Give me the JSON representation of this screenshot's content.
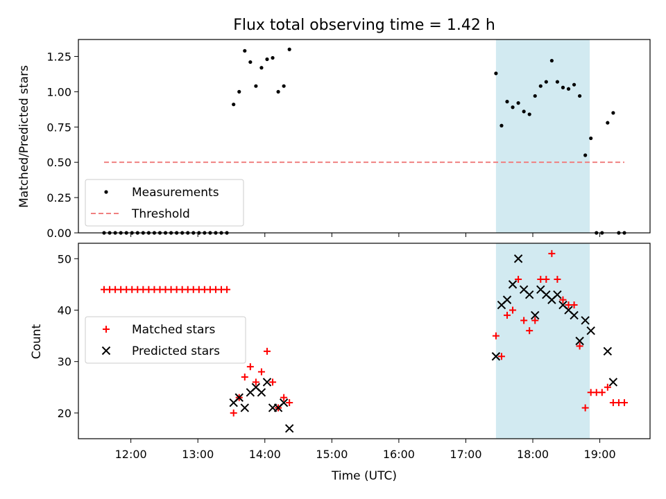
{
  "title": "Flux total observing time = 1.42 h",
  "xlabel": "Time (UTC)",
  "x_ticks": [
    "12:00",
    "13:00",
    "14:00",
    "15:00",
    "16:00",
    "17:00",
    "18:00",
    "19:00"
  ],
  "chart_data": [
    {
      "type": "scatter",
      "title": "Flux total observing time = 1.42 h",
      "xlabel": "",
      "ylabel": "Matched/Predicted stars",
      "xlim": [
        "11:13",
        "19:45"
      ],
      "ylim": [
        0,
        1.37
      ],
      "y_ticks": [
        "0.00",
        "0.25",
        "0.50",
        "0.75",
        "1.00",
        "1.25"
      ],
      "legend": "lower-left",
      "highlight_span": {
        "start": "17:27",
        "end": "18:51",
        "color": "#add8e6"
      },
      "series": [
        {
          "name": "Measurements",
          "marker": "dot",
          "color": "#000000",
          "points": [
            [
              "11:36",
              0
            ],
            [
              "11:41",
              0
            ],
            [
              "11:46",
              0
            ],
            [
              "11:51",
              0
            ],
            [
              "11:56",
              0
            ],
            [
              "12:01",
              0
            ],
            [
              "12:06",
              0
            ],
            [
              "12:11",
              0
            ],
            [
              "12:16",
              0
            ],
            [
              "12:21",
              0
            ],
            [
              "12:26",
              0
            ],
            [
              "12:31",
              0
            ],
            [
              "12:36",
              0
            ],
            [
              "12:41",
              0
            ],
            [
              "12:46",
              0
            ],
            [
              "12:51",
              0
            ],
            [
              "12:56",
              0
            ],
            [
              "13:01",
              0
            ],
            [
              "13:06",
              0
            ],
            [
              "13:11",
              0
            ],
            [
              "13:16",
              0
            ],
            [
              "13:21",
              0
            ],
            [
              "13:26",
              0
            ],
            [
              "13:32",
              0.91
            ],
            [
              "13:37",
              1.0
            ],
            [
              "13:42",
              1.29
            ],
            [
              "13:47",
              1.21
            ],
            [
              "13:52",
              1.04
            ],
            [
              "13:57",
              1.17
            ],
            [
              "14:02",
              1.23
            ],
            [
              "14:07",
              1.24
            ],
            [
              "14:12",
              1.0
            ],
            [
              "14:17",
              1.04
            ],
            [
              "14:22",
              1.3
            ],
            [
              "17:27",
              1.13
            ],
            [
              "17:32",
              0.76
            ],
            [
              "17:37",
              0.93
            ],
            [
              "17:42",
              0.89
            ],
            [
              "17:47",
              0.92
            ],
            [
              "17:52",
              0.86
            ],
            [
              "17:57",
              0.84
            ],
            [
              "18:02",
              0.97
            ],
            [
              "18:07",
              1.04
            ],
            [
              "18:12",
              1.07
            ],
            [
              "18:17",
              1.22
            ],
            [
              "18:22",
              1.07
            ],
            [
              "18:27",
              1.03
            ],
            [
              "18:32",
              1.02
            ],
            [
              "18:37",
              1.05
            ],
            [
              "18:42",
              0.97
            ],
            [
              "18:47",
              0.55
            ],
            [
              "18:52",
              0.67
            ],
            [
              "18:57",
              0
            ],
            [
              "19:02",
              0
            ],
            [
              "19:07",
              0.78
            ],
            [
              "19:12",
              0.85
            ],
            [
              "19:17",
              0
            ],
            [
              "19:22",
              0
            ]
          ]
        },
        {
          "name": "Threshold",
          "line": "dashed",
          "color": "#f08080",
          "points": [
            [
              "11:36",
              0.5
            ],
            [
              "19:22",
              0.5
            ]
          ]
        }
      ]
    },
    {
      "type": "scatter",
      "xlabel": "Time (UTC)",
      "ylabel": "Count",
      "xlim": [
        "11:13",
        "19:45"
      ],
      "ylim": [
        15,
        53
      ],
      "y_ticks": [
        "20",
        "30",
        "40",
        "50"
      ],
      "legend": "center-left",
      "highlight_span": {
        "start": "17:27",
        "end": "18:51",
        "color": "#add8e6"
      },
      "series": [
        {
          "name": "Matched stars",
          "marker": "plus",
          "color": "#ff0000",
          "points": [
            [
              "11:36",
              44
            ],
            [
              "11:41",
              44
            ],
            [
              "11:46",
              44
            ],
            [
              "11:51",
              44
            ],
            [
              "11:56",
              44
            ],
            [
              "12:01",
              44
            ],
            [
              "12:06",
              44
            ],
            [
              "12:11",
              44
            ],
            [
              "12:16",
              44
            ],
            [
              "12:21",
              44
            ],
            [
              "12:26",
              44
            ],
            [
              "12:31",
              44
            ],
            [
              "12:36",
              44
            ],
            [
              "12:41",
              44
            ],
            [
              "12:46",
              44
            ],
            [
              "12:51",
              44
            ],
            [
              "12:56",
              44
            ],
            [
              "13:01",
              44
            ],
            [
              "13:06",
              44
            ],
            [
              "13:11",
              44
            ],
            [
              "13:16",
              44
            ],
            [
              "13:21",
              44
            ],
            [
              "13:26",
              44
            ],
            [
              "13:32",
              20
            ],
            [
              "13:37",
              23
            ],
            [
              "13:42",
              27
            ],
            [
              "13:47",
              29
            ],
            [
              "13:52",
              26
            ],
            [
              "13:57",
              28
            ],
            [
              "14:02",
              32
            ],
            [
              "14:07",
              26
            ],
            [
              "14:12",
              21
            ],
            [
              "14:17",
              23
            ],
            [
              "14:22",
              22
            ],
            [
              "17:27",
              35
            ],
            [
              "17:32",
              31
            ],
            [
              "17:37",
              39
            ],
            [
              "17:42",
              40
            ],
            [
              "17:47",
              46
            ],
            [
              "17:52",
              38
            ],
            [
              "17:57",
              36
            ],
            [
              "18:02",
              38
            ],
            [
              "18:07",
              46
            ],
            [
              "18:12",
              46
            ],
            [
              "18:17",
              51
            ],
            [
              "18:22",
              46
            ],
            [
              "18:27",
              42
            ],
            [
              "18:32",
              41
            ],
            [
              "18:37",
              41
            ],
            [
              "18:42",
              33
            ],
            [
              "18:47",
              21
            ],
            [
              "18:52",
              24
            ],
            [
              "18:57",
              24
            ],
            [
              "19:02",
              24
            ],
            [
              "19:07",
              25
            ],
            [
              "19:12",
              22
            ],
            [
              "19:17",
              22
            ],
            [
              "19:22",
              22
            ]
          ]
        },
        {
          "name": "Predicted stars",
          "marker": "x",
          "color": "#000000",
          "points": [
            [
              "13:32",
              22
            ],
            [
              "13:37",
              23
            ],
            [
              "13:42",
              21
            ],
            [
              "13:47",
              24
            ],
            [
              "13:52",
              25
            ],
            [
              "13:57",
              24
            ],
            [
              "14:02",
              26
            ],
            [
              "14:07",
              21
            ],
            [
              "14:12",
              21
            ],
            [
              "14:17",
              22
            ],
            [
              "14:22",
              17
            ],
            [
              "17:27",
              31
            ],
            [
              "17:32",
              41
            ],
            [
              "17:37",
              42
            ],
            [
              "17:42",
              45
            ],
            [
              "17:47",
              50
            ],
            [
              "17:52",
              44
            ],
            [
              "17:57",
              43
            ],
            [
              "18:02",
              39
            ],
            [
              "18:07",
              44
            ],
            [
              "18:12",
              43
            ],
            [
              "18:17",
              42
            ],
            [
              "18:22",
              43
            ],
            [
              "18:27",
              41
            ],
            [
              "18:32",
              40
            ],
            [
              "18:37",
              39
            ],
            [
              "18:42",
              34
            ],
            [
              "18:47",
              38
            ],
            [
              "18:52",
              36
            ],
            [
              "19:07",
              32
            ],
            [
              "19:12",
              26
            ]
          ]
        }
      ]
    }
  ]
}
